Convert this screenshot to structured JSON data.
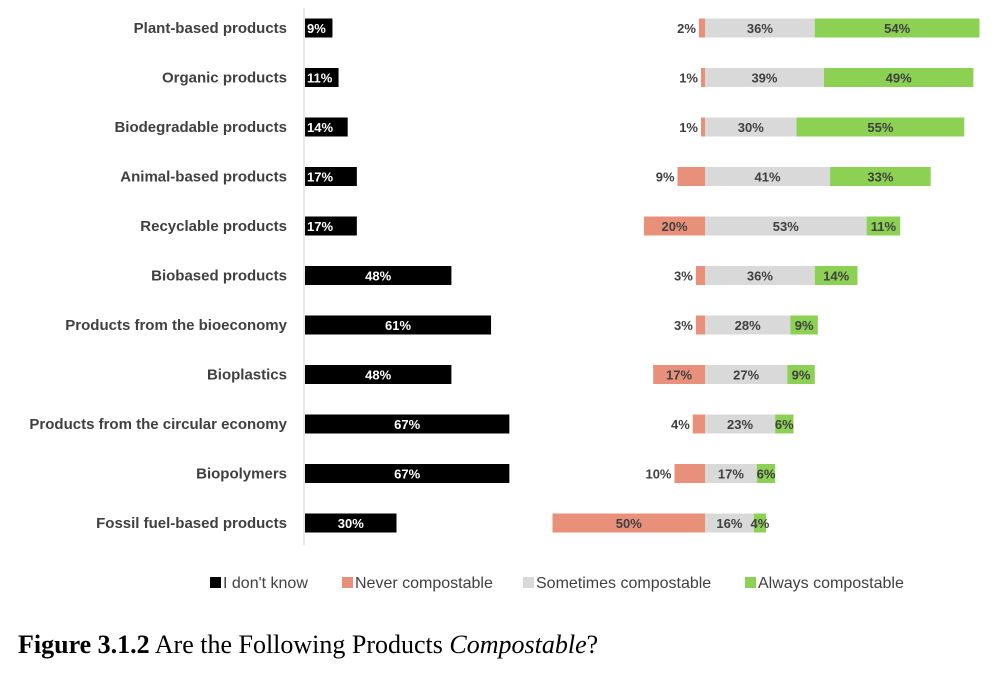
{
  "chart_data": {
    "type": "bar",
    "orientation": "horizontal",
    "categories": [
      "Plant-based products",
      "Organic products",
      "Biodegradable products",
      "Animal-based products",
      "Recyclable products",
      "Biobased products",
      "Products from the bioeconomy",
      "Bioplastics",
      "Products from the circular economy",
      "Biopolymers",
      "Fossil fuel-based products"
    ],
    "series": [
      {
        "name": "I don't know",
        "color": "#000000",
        "values": [
          9,
          11,
          14,
          17,
          17,
          48,
          61,
          48,
          67,
          67,
          30
        ]
      },
      {
        "name": "Never compostable",
        "color": "#E8907A",
        "values": [
          2,
          1,
          1,
          9,
          20,
          3,
          3,
          17,
          4,
          10,
          50
        ]
      },
      {
        "name": "Sometimes compostable",
        "color": "#D9D9D9",
        "values": [
          36,
          39,
          30,
          41,
          53,
          36,
          28,
          27,
          23,
          17,
          16
        ]
      },
      {
        "name": "Always compostable",
        "color": "#8CD054",
        "values": [
          54,
          49,
          55,
          33,
          11,
          14,
          9,
          9,
          6,
          6,
          4
        ]
      }
    ],
    "value_suffix": "%",
    "legend_position": "bottom",
    "grid": false
  },
  "caption": {
    "number": "Figure 3.1.2",
    "text_before": " Are the Following Products ",
    "emphasis": "Compostable",
    "text_after": "?"
  }
}
